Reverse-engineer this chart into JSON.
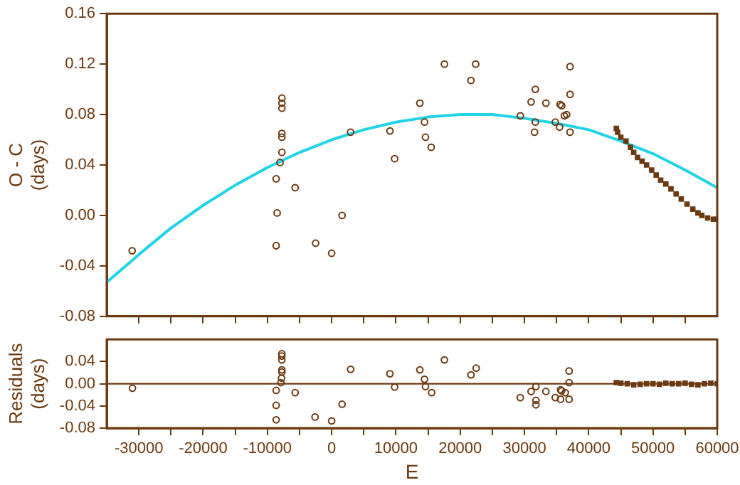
{
  "chart_data": [
    {
      "type": "scatter",
      "ylabel": "O - C\n(days)",
      "xlim": [
        -35000,
        60000
      ],
      "ylim": [
        -0.08,
        0.16
      ],
      "xticks": [
        {
          "value": -30000,
          "label": null
        },
        {
          "value": -25000,
          "label": null
        },
        {
          "value": -20000,
          "label": null
        },
        {
          "value": -15000,
          "label": null
        },
        {
          "value": -10000,
          "label": null
        },
        {
          "value": -5000,
          "label": null
        },
        {
          "value": 0,
          "label": null
        },
        {
          "value": 5000,
          "label": null
        },
        {
          "value": 10000,
          "label": null
        },
        {
          "value": 15000,
          "label": null
        },
        {
          "value": 20000,
          "label": null
        },
        {
          "value": 25000,
          "label": null
        },
        {
          "value": 30000,
          "label": null
        },
        {
          "value": 35000,
          "label": null
        },
        {
          "value": 40000,
          "label": null
        },
        {
          "value": 45000,
          "label": null
        },
        {
          "value": 50000,
          "label": null
        },
        {
          "value": 55000,
          "label": null
        }
      ],
      "yticks": [
        {
          "value": -0.08,
          "label": "-0.08"
        },
        {
          "value": -0.04,
          "label": "-0.04"
        },
        {
          "value": 0,
          "label": "0.00"
        },
        {
          "value": 0.04,
          "label": "0.04"
        },
        {
          "value": 0.08,
          "label": "0.08"
        },
        {
          "value": 0.12,
          "label": "0.12"
        },
        {
          "value": 0.16,
          "label": "0.16"
        }
      ],
      "tick_labels": "y",
      "grid": false,
      "legend": false,
      "series": [
        {
          "marker": "circle",
          "color": "#6b3a10",
          "x": [
            -31040,
            -7740,
            -7740,
            -7740,
            -7740,
            -7740,
            -7740,
            -8030,
            -8630,
            -5680,
            -8480,
            -8630,
            -2500,
            0,
            1620,
            2950,
            9070,
            9800,
            13720,
            14450,
            14600,
            15490,
            17550,
            21680,
            22410,
            29360,
            31040,
            31700,
            31700,
            31570,
            33340,
            34800,
            35550,
            35800,
            35470,
            36220,
            36570,
            37100,
            37100,
            37100
          ],
          "values": [
            -0.028,
            0.093,
            0.089,
            0.085,
            0.065,
            0.062,
            0.05,
            0.042,
            0.029,
            0.022,
            0.002,
            -0.024,
            -0.022,
            -0.03,
            0.0,
            0.066,
            0.067,
            0.045,
            0.089,
            0.074,
            0.062,
            0.054,
            0.12,
            0.107,
            0.12,
            0.079,
            0.09,
            0.1,
            0.074,
            0.066,
            0.089,
            0.074,
            0.088,
            0.087,
            0.07,
            0.079,
            0.08,
            0.118,
            0.096,
            0.066
          ]
        },
        {
          "marker": "square",
          "color": "#6b3a10",
          "x": [
            44300,
            44500,
            45000,
            45800,
            46500,
            47000,
            47600,
            48300,
            49000,
            49800,
            50500,
            51200,
            52000,
            52800,
            53600,
            54400,
            55300,
            56200,
            57000,
            57600,
            58500,
            59400,
            60000
          ],
          "values": [
            0.069,
            0.066,
            0.062,
            0.059,
            0.054,
            0.05,
            0.046,
            0.043,
            0.04,
            0.036,
            0.032,
            0.028,
            0.025,
            0.021,
            0.017,
            0.013,
            0.009,
            0.005,
            0.002,
            0.0,
            -0.002,
            -0.003,
            -0.003
          ]
        },
        {
          "type": "line",
          "color": "#22d3e6",
          "x": [
            -35000,
            -30000,
            -25000,
            -20000,
            -15000,
            -10000,
            -5000,
            0,
            5000,
            10000,
            15000,
            20000,
            25000,
            30000,
            35000,
            40000,
            45000,
            50000,
            55000,
            60000
          ],
          "values": [
            -0.053,
            -0.031,
            -0.01,
            0.008,
            0.024,
            0.038,
            0.05,
            0.06,
            0.068,
            0.074,
            0.078,
            0.08,
            0.08,
            0.077,
            0.073,
            0.068,
            0.059,
            0.049,
            0.036,
            0.022
          ]
        }
      ]
    },
    {
      "type": "scatter",
      "xlabel": "E",
      "ylabel": "Residuals\n(days)",
      "xlim": [
        -35000,
        60000
      ],
      "ylim": [
        -0.08,
        0.08
      ],
      "xticks": [
        -30000,
        {
          "value": -25000,
          "label": null
        },
        -20000,
        {
          "value": -15000,
          "label": null
        },
        -10000,
        {
          "value": -5000,
          "label": null
        },
        0,
        {
          "value": 5000,
          "label": null
        },
        10000,
        {
          "value": 15000,
          "label": null
        },
        20000,
        {
          "value": 25000,
          "label": null
        },
        30000,
        {
          "value": 35000,
          "label": null
        },
        40000,
        {
          "value": 45000,
          "label": null
        },
        50000,
        {
          "value": 55000,
          "label": null
        },
        60000
      ],
      "yticks": [
        {
          "value": -0.08,
          "label": "-0.08"
        },
        {
          "value": -0.04,
          "label": "-0.04"
        },
        {
          "value": 0,
          "label": "0.00"
        },
        {
          "value": 0.04,
          "label": "0.04"
        }
      ],
      "grid": false,
      "legend": false,
      "ref_lines": [
        {
          "axis": "y",
          "value": 0,
          "color": "#6b3a10"
        }
      ],
      "series": [
        {
          "marker": "circle",
          "color": "#6b3a10",
          "x": [
            -31000,
            -8630,
            -8630,
            -8630,
            -7900,
            -7800,
            -7750,
            -7750,
            -7750,
            -7750,
            -7750,
            -5680,
            -2580,
            0,
            1620,
            2950,
            9070,
            9800,
            13720,
            14450,
            14600,
            15560,
            17550,
            21680,
            22490,
            29350,
            31040,
            31790,
            31790,
            31790,
            33340,
            34800,
            35620,
            35620,
            35800,
            36350,
            36950,
            36950,
            36950
          ],
          "values": [
            -0.008,
            -0.012,
            -0.039,
            -0.065,
            0.002,
            0.01,
            0.021,
            0.025,
            0.043,
            0.05,
            0.054,
            -0.016,
            -0.06,
            -0.067,
            -0.037,
            0.026,
            0.018,
            -0.006,
            0.025,
            0.008,
            -0.005,
            -0.016,
            0.043,
            0.016,
            0.028,
            -0.025,
            -0.014,
            -0.005,
            -0.03,
            -0.038,
            -0.014,
            -0.025,
            -0.011,
            -0.028,
            -0.013,
            -0.016,
            0.023,
            0.002,
            -0.028
          ]
        },
        {
          "marker": "square",
          "color": "#6b3a10",
          "x": [
            44300,
            45000,
            46000,
            47000,
            48000,
            49000,
            50000,
            51000,
            52000,
            53000,
            54000,
            55000,
            56000,
            57000,
            58000,
            59000,
            60000
          ],
          "values": [
            0.002,
            0.001,
            0.0,
            -0.002,
            -0.001,
            0.0,
            0.0,
            -0.001,
            0.001,
            0.0,
            0.0,
            0.001,
            -0.001,
            -0.002,
            0.0,
            0.001,
            0.0
          ]
        }
      ]
    }
  ]
}
